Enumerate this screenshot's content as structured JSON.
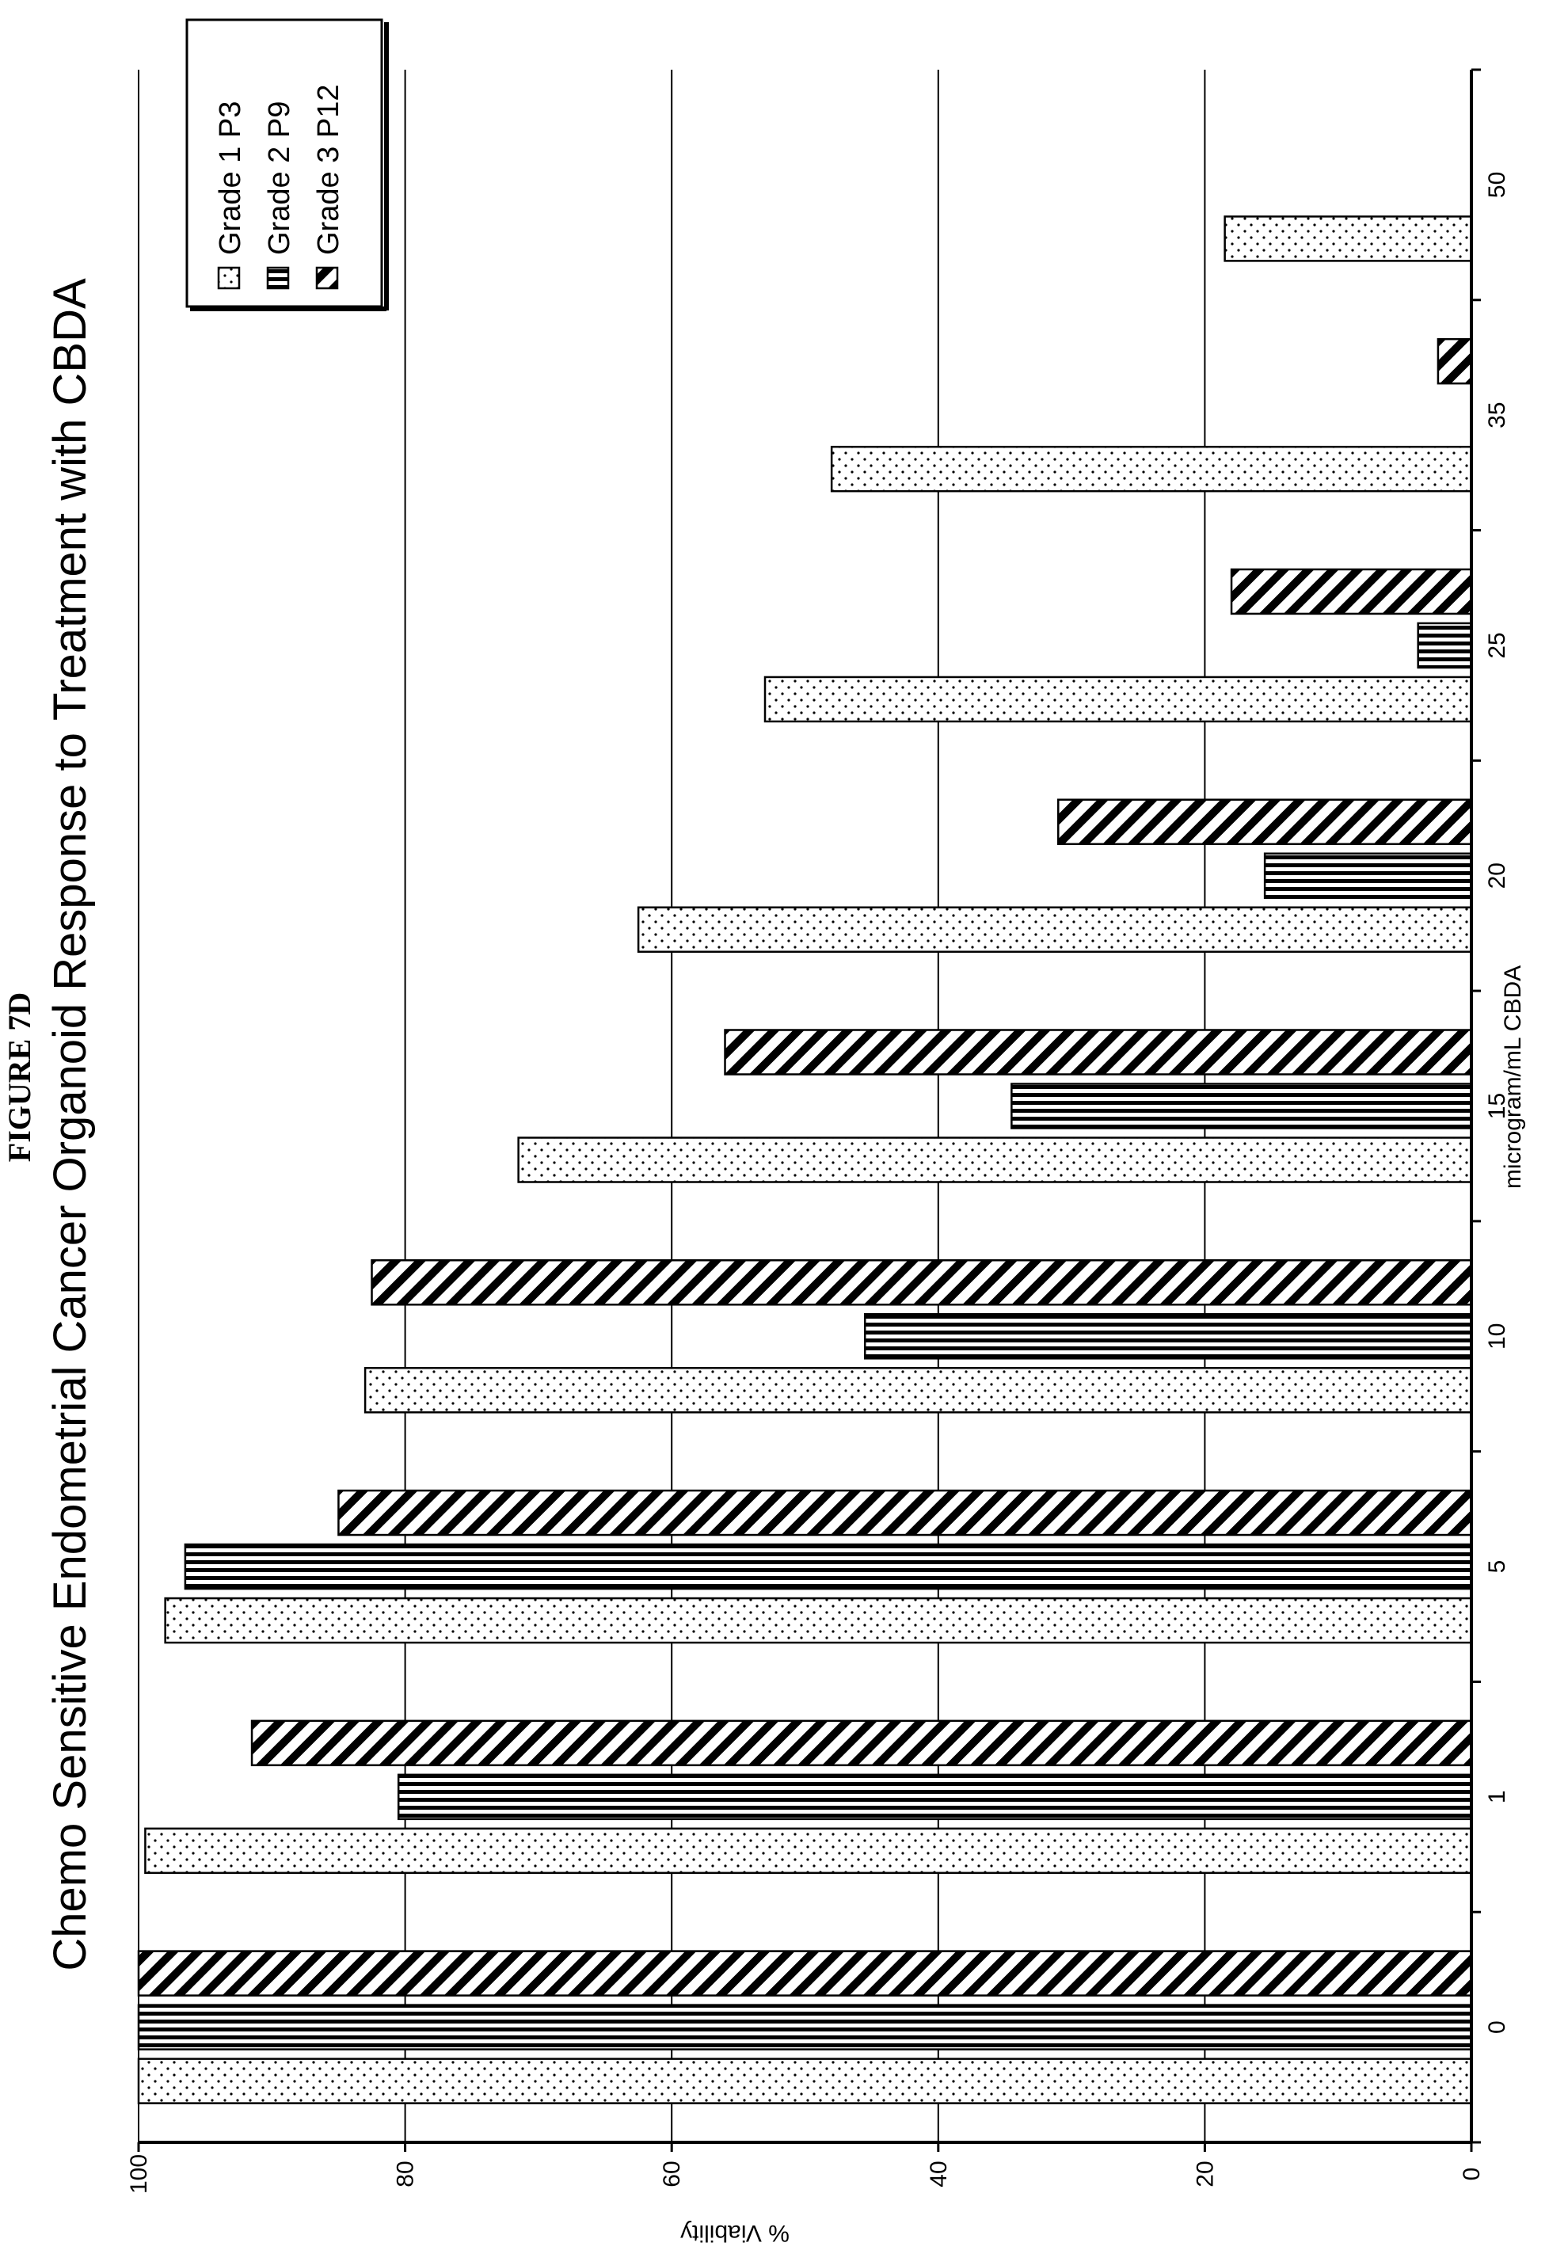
{
  "figure_label": "FIGURE 7D",
  "chart_data": {
    "type": "bar",
    "orientation": "rotated-90",
    "title": "Chemo Sensitive Endometrial Cancer Organoid Response to Treatment with CBDA",
    "xlabel": "microgram/mL CBDA",
    "ylabel": "% Viability",
    "ylim": [
      0,
      100
    ],
    "yticks": [
      "0",
      "20",
      "40",
      "60",
      "80",
      "100"
    ],
    "grid": true,
    "legend_position": "top-right",
    "categories": [
      "0",
      "1",
      "5",
      "10",
      "15",
      "20",
      "25",
      "35",
      "50"
    ],
    "series": [
      {
        "name": "Grade 1 P3",
        "pattern": "dots",
        "values": [
          100,
          99.5,
          98,
          83,
          71.5,
          62.5,
          53,
          48,
          18.5
        ]
      },
      {
        "name": "Grade 2 P9",
        "pattern": "vertical-stripes",
        "values": [
          100,
          80.5,
          96.5,
          45.5,
          34.5,
          15.5,
          4,
          0,
          0
        ]
      },
      {
        "name": "Grade 3 P12",
        "pattern": "diagonal-hatch",
        "values": [
          100,
          91.5,
          85,
          82.5,
          56,
          31,
          18,
          2.5,
          0
        ]
      }
    ]
  }
}
